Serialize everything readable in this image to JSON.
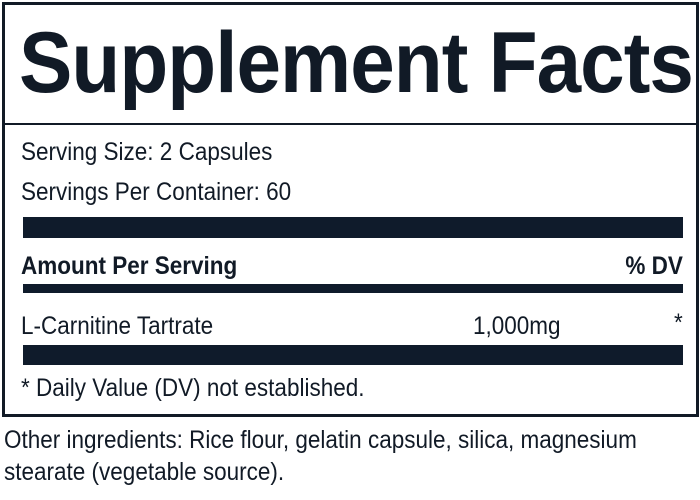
{
  "label": {
    "title": "Supplement Facts",
    "serving_size": "Serving Size: 2 Capsules",
    "servings_per_container": "Servings Per Container: 60",
    "header": {
      "amount": "Amount Per Serving",
      "dv": "% DV"
    },
    "rows": [
      {
        "name": "L-Carnitine Tartrate",
        "amount": "1,000mg",
        "dv": "*"
      }
    ],
    "footnote": "* Daily Value (DV) not established."
  },
  "other_ingredients": "Other ingredients: Rice flour, gelatin capsule, silica, magnesium stearate (vegetable source).",
  "colors": {
    "ink": "#111a26",
    "bar": "#0f1b2b"
  }
}
